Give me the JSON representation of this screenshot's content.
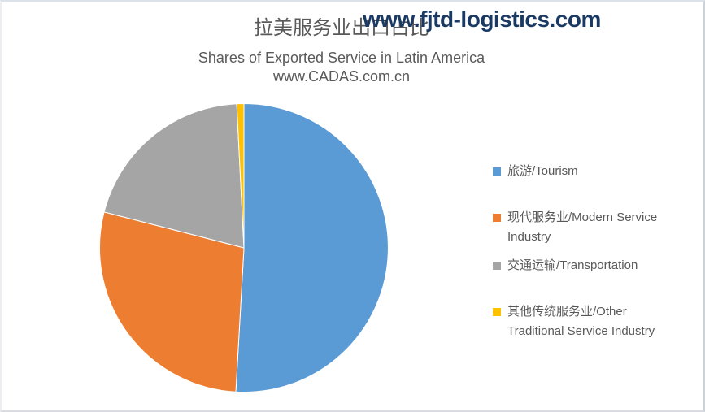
{
  "watermark": "www.fjtd-logistics.com",
  "title": {
    "line1_zh": "拉美服务业出口占比",
    "line2_en": "Shares of Exported Service in Latin America",
    "line3_site": "www.CADAS.com.cn"
  },
  "colors": {
    "background": "#ffffff",
    "title_text": "#595959",
    "legend_text": "#595959",
    "watermark_text": "#1b3a63",
    "frame_border": "#d9dde3",
    "slice_separator": "#ffffff"
  },
  "chart_data": {
    "type": "pie",
    "title": "拉美服务业出口占比",
    "subtitle": "Shares of Exported Service in Latin America",
    "subtitle2": "www.CADAS.com.cn",
    "legend_position": "right",
    "start_angle_deg": 0,
    "direction": "clockwise",
    "data_labels_shown": false,
    "slices": [
      {
        "label": "旅游/Tourism",
        "label_lines": [
          "旅游/Tourism"
        ],
        "value_pct": 50.9,
        "color": "#5B9BD5"
      },
      {
        "label": "现代服务业/Modern Service Industry",
        "label_lines": [
          "现代服务业/Modern Service",
          "Industry"
        ],
        "value_pct": 28.1,
        "color": "#ED7D31"
      },
      {
        "label": "交通运输/Transportation",
        "label_lines": [
          "交通运输/Transportation"
        ],
        "value_pct": 20.2,
        "color": "#A5A5A5"
      },
      {
        "label": "其他传统服务业/Other Traditional Service Industry",
        "label_lines": [
          "其他传统服务业/Other",
          "Traditional Service Industry"
        ],
        "value_pct": 0.8,
        "color": "#FFC000"
      }
    ]
  }
}
